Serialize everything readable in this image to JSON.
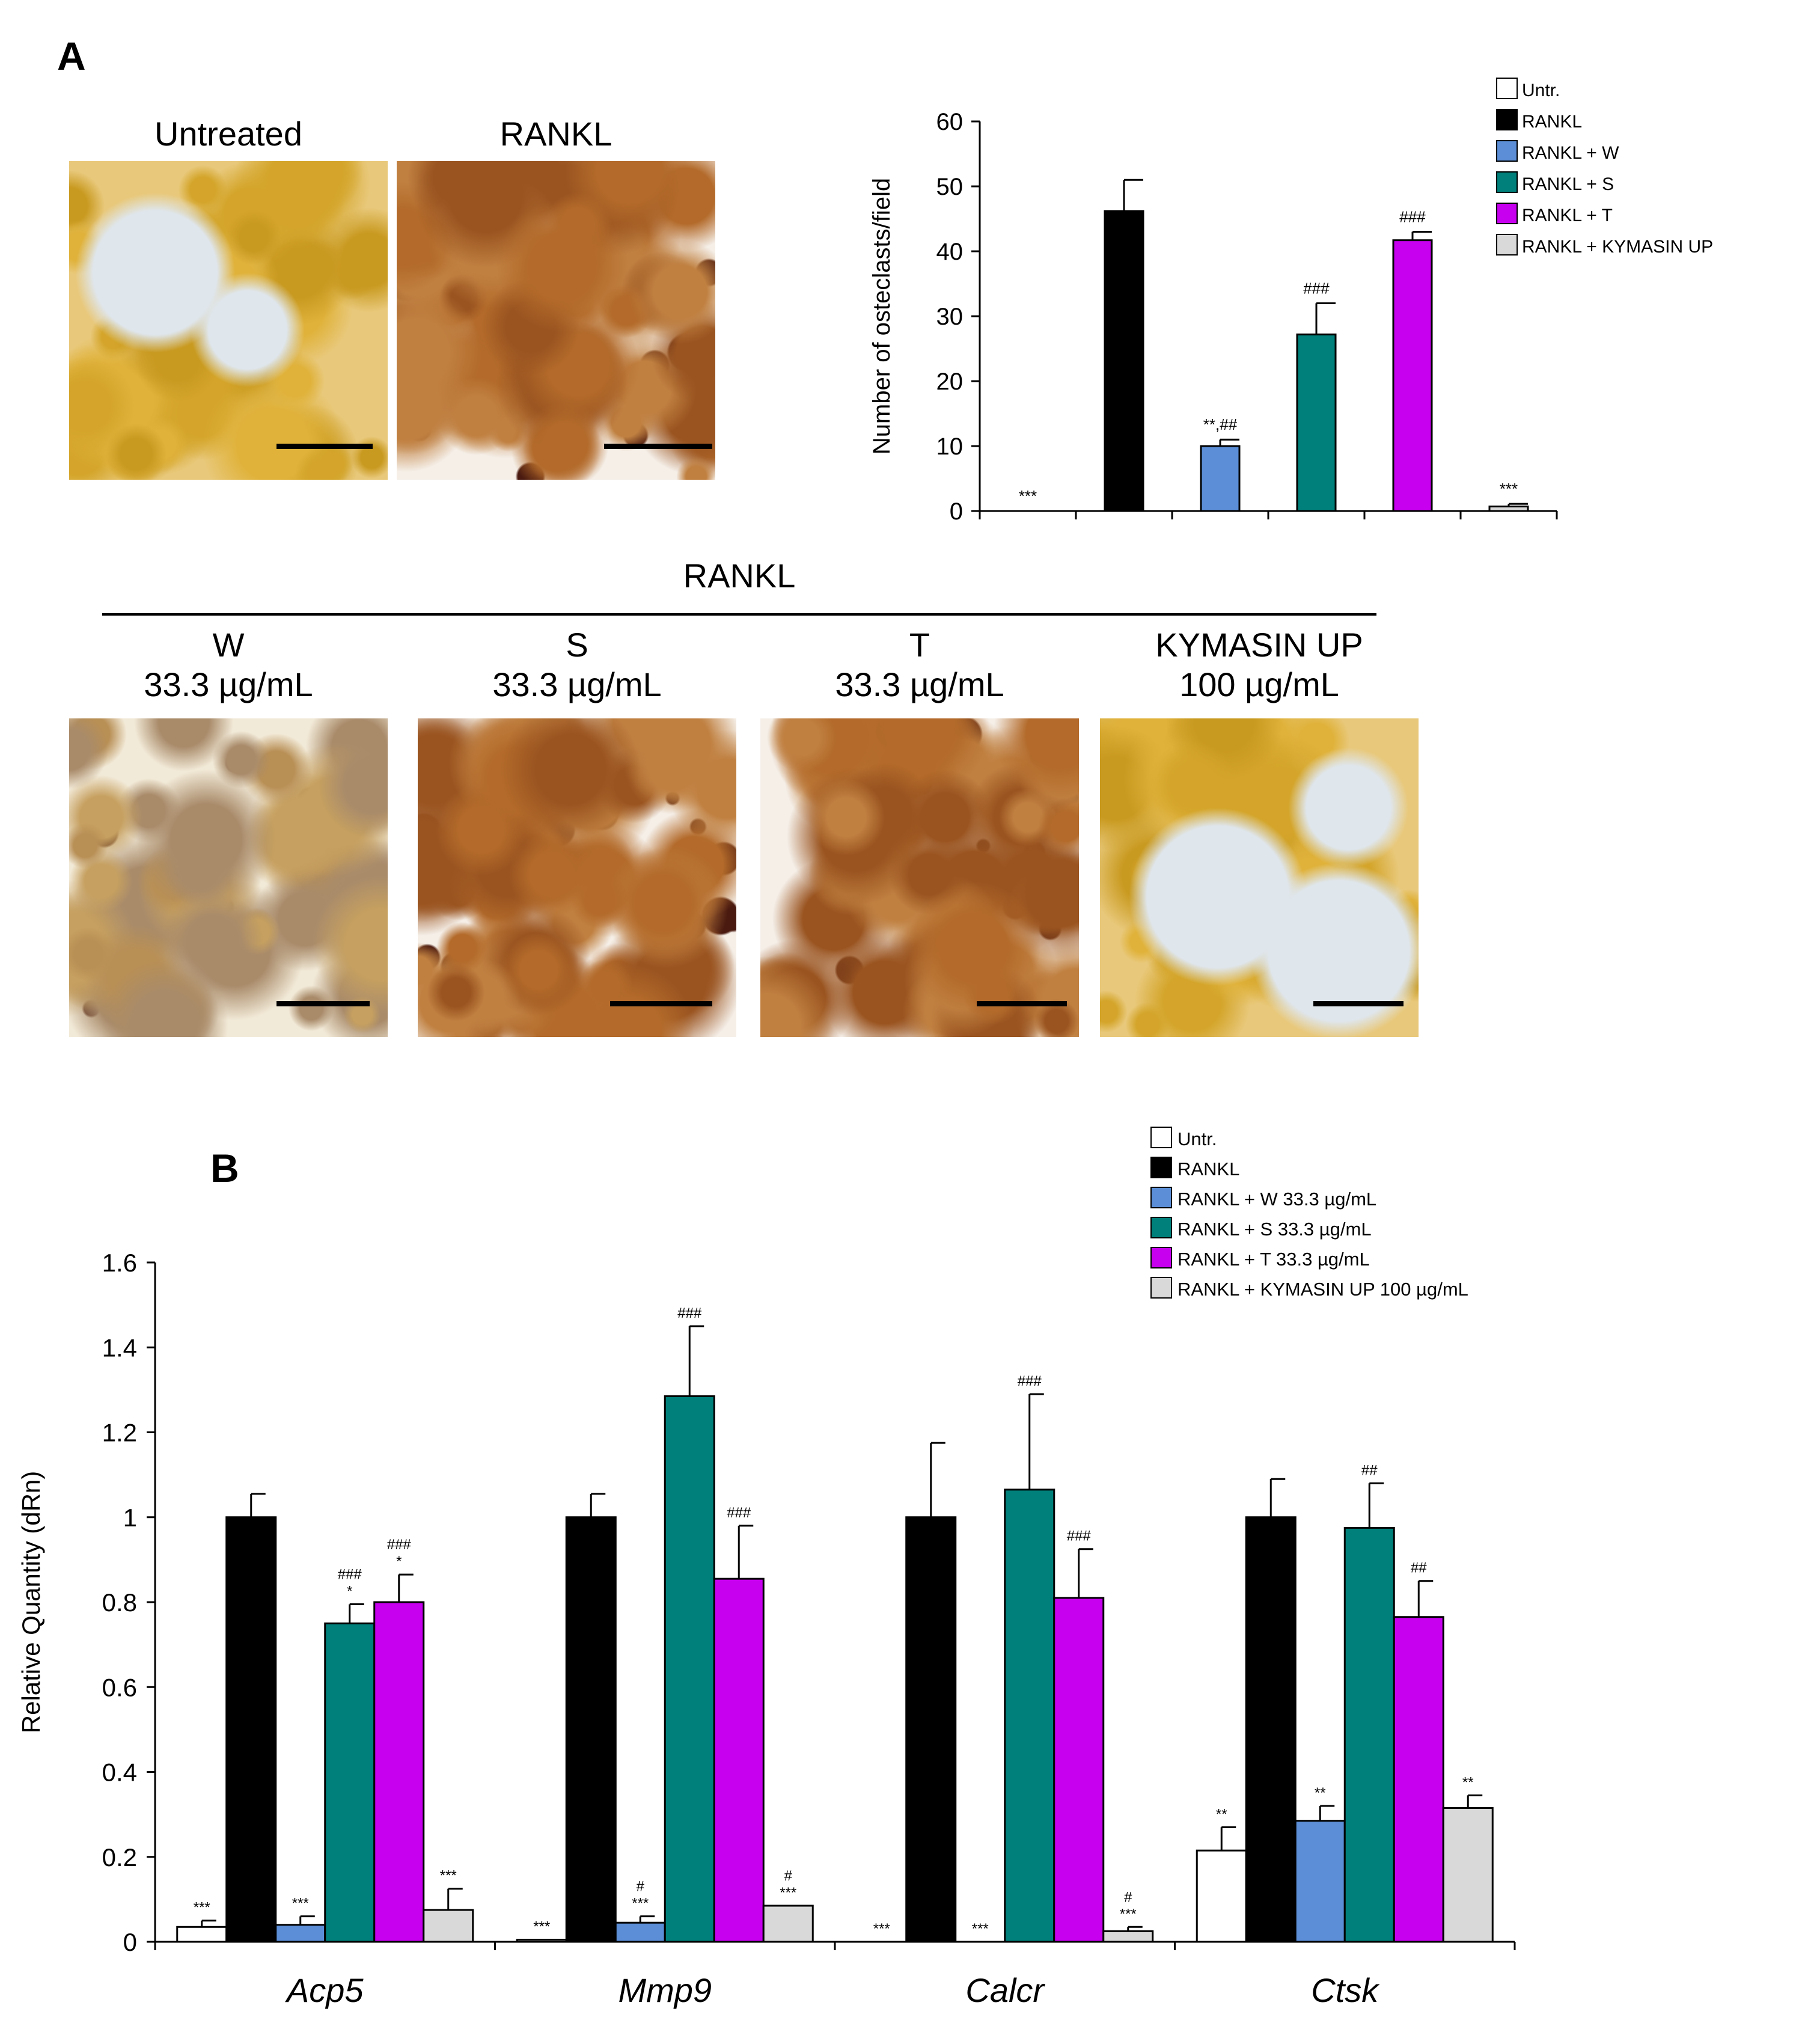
{
  "panel_a": {
    "label": "A",
    "top_images": [
      {
        "title": "Untreated",
        "style": "pale"
      },
      {
        "title": "RANKL",
        "style": "dense"
      }
    ],
    "group_label": "RANKL",
    "bottom_images": [
      {
        "title_line1": "W",
        "title_line2": "33.3 µg/mL",
        "style": "light"
      },
      {
        "title_line1": "S",
        "title_line2": "33.3 µg/mL",
        "style": "dense"
      },
      {
        "title_line1": "T",
        "title_line2": "33.3 µg/mL",
        "style": "dense"
      },
      {
        "title_line1": "KYMASIN UP",
        "title_line2": "100 µg/mL",
        "style": "pale"
      }
    ]
  },
  "panel_b": {
    "label": "B"
  },
  "colors": {
    "untr": "#ffffff",
    "rankl": "#000000",
    "w": "#5b8ed6",
    "s": "#00807a",
    "t": "#c800f0",
    "kymasin": "#d9d9d9"
  },
  "chart_data": [
    {
      "type": "bar",
      "ylabel": "Number of osteclasts/field",
      "ylim": [
        0,
        60
      ],
      "yticks": [
        0,
        10,
        20,
        30,
        40,
        50,
        60
      ],
      "legend_position": "top-right",
      "legend": [
        "Untr.",
        "RANKL",
        "RANKL + W",
        "RANKL + S",
        "RANKL + T",
        "RANKL + KYMASIN UP"
      ],
      "categories": [
        "Untr.",
        "RANKL",
        "RANKL + W",
        "RANKL + S",
        "RANKL + T",
        "RANKL + KYMASIN UP"
      ],
      "values": [
        0,
        46.2,
        10,
        27.2,
        41.7,
        0.7
      ],
      "errors": [
        0,
        4.8,
        1,
        4.8,
        1.3,
        0.4
      ],
      "annotations": [
        "***",
        "",
        "**,##",
        "###",
        "###",
        "***"
      ]
    },
    {
      "type": "bar",
      "ylabel": "Relative Quantity (dRn)",
      "ylim": [
        0,
        1.6
      ],
      "yticks": [
        "0",
        "0.2",
        "0.4",
        "0.6",
        "0.8",
        "1",
        "1.2",
        "1.4",
        "1.6"
      ],
      "legend_position": "top-right",
      "categories": [
        "Acp5",
        "Mmp9",
        "Calcr",
        "Ctsk"
      ],
      "series": [
        {
          "name": "Untr.",
          "values": [
            0.035,
            0.005,
            0,
            0.215
          ],
          "errors": [
            0.015,
            0,
            0,
            0.055
          ],
          "annotations": [
            [
              "***"
            ],
            [
              "***"
            ],
            [
              "***"
            ],
            [
              "**"
            ]
          ]
        },
        {
          "name": "RANKL",
          "values": [
            1.0,
            1.0,
            1.0,
            1.0
          ],
          "errors": [
            0.055,
            0.055,
            0.175,
            0.09
          ],
          "annotations": [
            [],
            [],
            [],
            []
          ]
        },
        {
          "name": "RANKL + W 33.3 µg/mL",
          "values": [
            0.04,
            0.045,
            0,
            0.285
          ],
          "errors": [
            0.02,
            0.015,
            0,
            0.035
          ],
          "annotations": [
            [
              "***"
            ],
            [
              "***",
              "#"
            ],
            [
              "***"
            ],
            [
              "**"
            ]
          ]
        },
        {
          "name": "RANKL + S 33.3 µg/mL",
          "values": [
            0.75,
            1.285,
            1.065,
            0.975
          ],
          "errors": [
            0.045,
            0.165,
            0.225,
            0.105
          ],
          "annotations": [
            [
              "*",
              "###"
            ],
            [
              "###"
            ],
            [
              "###"
            ],
            [
              "##"
            ]
          ]
        },
        {
          "name": "RANKL + T 33.3 µg/mL",
          "values": [
            0.8,
            0.855,
            0.81,
            0.765
          ],
          "errors": [
            0.065,
            0.125,
            0.115,
            0.085
          ],
          "annotations": [
            [
              "*",
              "###"
            ],
            [
              "###"
            ],
            [
              "###"
            ],
            [
              "##"
            ]
          ]
        },
        {
          "name": "RANKL + KYMASIN UP 100 µg/mL",
          "values": [
            0.075,
            0.085,
            0.025,
            0.315
          ],
          "errors": [
            0.05,
            0,
            0.01,
            0.03
          ],
          "annotations": [
            [
              "***"
            ],
            [
              "***",
              "#"
            ],
            [
              "***",
              "#"
            ],
            [
              "**"
            ]
          ]
        }
      ]
    }
  ]
}
